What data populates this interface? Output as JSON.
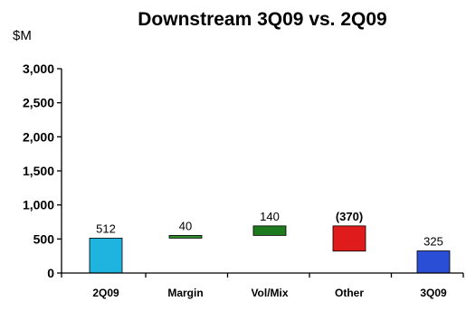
{
  "chart_data": {
    "type": "bar",
    "subtype": "waterfall",
    "title": "Downstream 3Q09 vs. 2Q09",
    "unit_label": "$M",
    "xlabel": "",
    "ylabel": "",
    "ylim": [
      0,
      3000
    ],
    "yticks": [
      0,
      500,
      1000,
      1500,
      2000,
      2500,
      3000
    ],
    "ytick_labels": [
      "0",
      "500",
      "1,000",
      "1,500",
      "2,000",
      "2,500",
      "3,000"
    ],
    "grid": false,
    "categories": [
      "2Q09",
      "Margin",
      "Vol/Mix",
      "Other",
      "3Q09"
    ],
    "bars": [
      {
        "category": "2Q09",
        "kind": "total",
        "start": 0,
        "end": 512,
        "label": "512",
        "color": "#1fb4e0",
        "label_color": "#000000"
      },
      {
        "category": "Margin",
        "kind": "delta",
        "start": 512,
        "end": 552,
        "label": "40",
        "color": "#2e8b2e",
        "label_color": "#000000"
      },
      {
        "category": "Vol/Mix",
        "kind": "delta",
        "start": 552,
        "end": 692,
        "label": "140",
        "color": "#1e7a1e",
        "label_color": "#000000"
      },
      {
        "category": "Other",
        "kind": "delta",
        "start": 692,
        "end": 322,
        "label": "(370)",
        "color": "#e01b1b",
        "label_color": "#c0141c"
      },
      {
        "category": "3Q09",
        "kind": "total",
        "start": 0,
        "end": 325,
        "label": "325",
        "color": "#2a4fd6",
        "label_color": "#000000"
      }
    ]
  }
}
